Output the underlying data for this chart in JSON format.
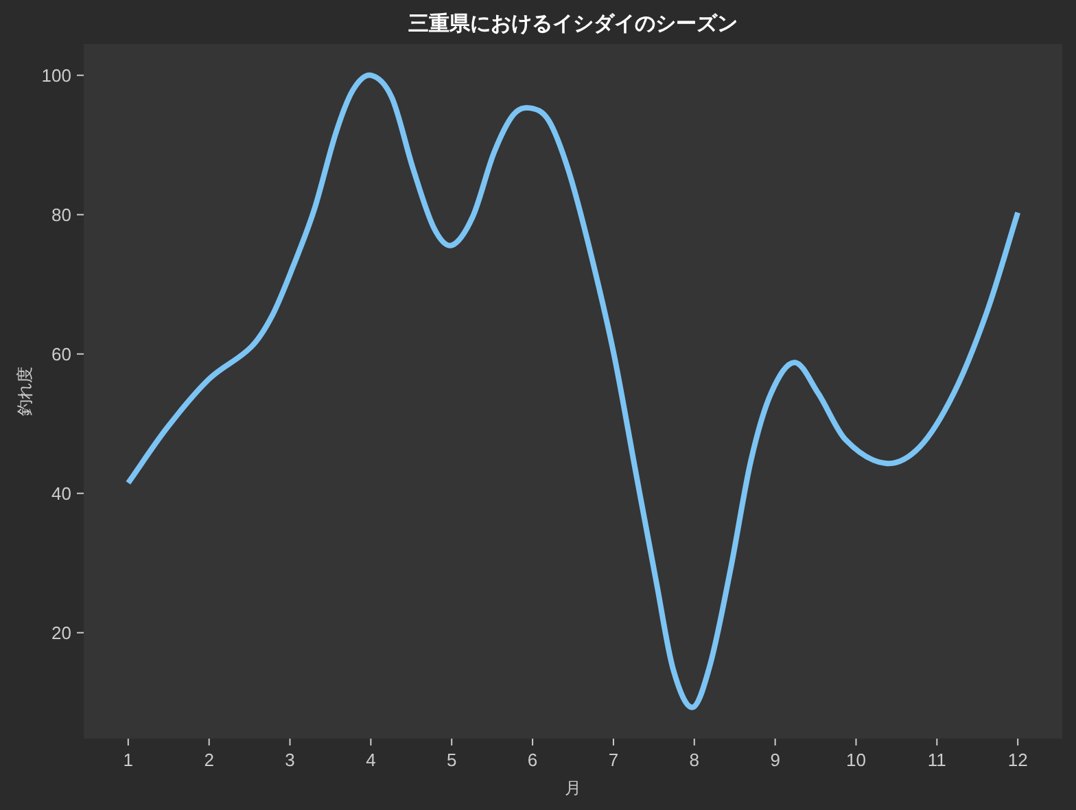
{
  "chart_data": {
    "type": "line",
    "title": "三重県におけるイシダイのシーズン",
    "xlabel": "月",
    "ylabel": "釣れ度",
    "x": [
      1.0,
      1.48,
      2.0,
      2.52,
      2.78,
      3.04,
      3.3,
      3.57,
      3.78,
      4.0,
      4.26,
      4.52,
      4.78,
      5.0,
      5.26,
      5.52,
      5.76,
      5.97,
      6.2,
      6.44,
      6.69,
      7.0,
      7.28,
      7.53,
      7.74,
      7.98,
      8.2,
      8.45,
      8.7,
      8.95,
      9.24,
      9.53,
      9.87,
      10.37,
      10.79,
      11.21,
      11.62,
      12.0
    ],
    "series": [
      {
        "color": "#7cc4f4",
        "values": [
          41.5,
          49.4,
          56.4,
          61.0,
          65.5,
          72.6,
          80.7,
          91.8,
          97.9,
          100,
          96.8,
          86.7,
          78.1,
          75.6,
          79.7,
          88.8,
          94.3,
          95.3,
          93.5,
          86.5,
          75.8,
          60.3,
          42.8,
          27.3,
          14.7,
          9.3,
          15.6,
          29.2,
          44.7,
          54.4,
          58.8,
          54.4,
          47.7,
          44.3,
          46.7,
          54.4,
          66.1,
          80.3
        ]
      }
    ],
    "xlim": [
      0.45,
      12.55
    ],
    "ylim": [
      4.8,
      104.5
    ],
    "xticks": [
      1,
      2,
      3,
      4,
      5,
      6,
      7,
      8,
      9,
      10,
      11,
      12
    ],
    "yticks": [
      20,
      40,
      60,
      80,
      100
    ],
    "marker": "none",
    "line_style": "solid"
  }
}
